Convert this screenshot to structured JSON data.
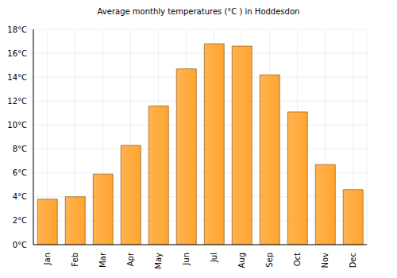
{
  "chart_data": {
    "type": "bar",
    "title": "Average monthly temperatures (°C ) in Hoddesdon",
    "categories": [
      "Jan",
      "Feb",
      "Mar",
      "Apr",
      "May",
      "Jun",
      "Jul",
      "Aug",
      "Sep",
      "Oct",
      "Nov",
      "Dec"
    ],
    "values": [
      3.8,
      4.0,
      5.9,
      8.3,
      11.6,
      14.7,
      16.8,
      16.6,
      14.2,
      11.1,
      6.7,
      4.6
    ],
    "color": "#ffa530",
    "ylim": [
      0,
      18
    ],
    "yticks": [
      {
        "value": 0,
        "label": "0°C"
      },
      {
        "value": 2,
        "label": "2°C"
      },
      {
        "value": 4,
        "label": "4°C"
      },
      {
        "value": 6,
        "label": "6°C"
      },
      {
        "value": 8,
        "label": "8°C"
      },
      {
        "value": 10,
        "label": "10°C"
      },
      {
        "value": 12,
        "label": "12°C"
      },
      {
        "value": 14,
        "label": "14°C"
      },
      {
        "value": 16,
        "label": "16°C"
      },
      {
        "value": 18,
        "label": "18°C"
      }
    ],
    "grid": true
  }
}
